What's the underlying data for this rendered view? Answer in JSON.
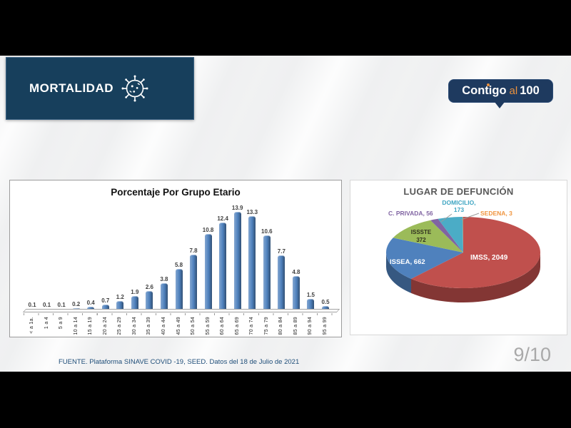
{
  "header": {
    "banner_title": "MORTALIDAD",
    "banner_icon": "virus-icon",
    "logo": {
      "part1": "Contigo",
      "part2": "al",
      "part3": "100"
    }
  },
  "footer": {
    "source": "FUENTE. Plataforma SINAVE COVID -19, SEED. Datos del 18 de Julio de 2021",
    "page": "9/10"
  },
  "colors": {
    "banner_bg": "#173F5C",
    "logo_bg": "#1E3A5F",
    "accent_orange": "#E9913E",
    "slide_bg": "#EFF0F1",
    "letterbox": "#000000"
  },
  "chart_data": [
    {
      "type": "bar",
      "title": "Porcentaje Por Grupo Etario",
      "categories": [
        "< a 1a.",
        "1 a 4",
        "5 a 9",
        "10 a 14",
        "15 a 19",
        "20 a 24",
        "25 a 29",
        "30 a 34",
        "35 a 39",
        "40 a 44",
        "45 a 49",
        "50 a 54",
        "55 a 59",
        "60 a 64",
        "65 a 69",
        "70 a 74",
        "75 a 79",
        "80 a 84",
        "85 a 89",
        "90 a 94",
        "95 a 99"
      ],
      "values": [
        0.1,
        0.1,
        0.1,
        0.2,
        0.4,
        0.7,
        1.2,
        1.9,
        2.6,
        3.8,
        5.8,
        7.8,
        10.8,
        12.4,
        13.9,
        13.3,
        10.6,
        7.7,
        4.8,
        1.5,
        0.5
      ],
      "bar_color": "#4F81BD",
      "xlabel": "",
      "ylabel": "",
      "ylim": [
        0,
        14
      ],
      "grid": false,
      "legend": "none",
      "data_labels": true
    },
    {
      "type": "pie",
      "title": "LUGAR DE DEFUNCIÓN",
      "style": "3d",
      "start_angle_deg": 0,
      "direction": "clockwise",
      "slices": [
        {
          "name": "IMSS",
          "value": 2049,
          "color": "#C0504D",
          "label": "IMSS, 2049"
        },
        {
          "name": "ISSEA",
          "value": 662,
          "color": "#4F81BD",
          "label": "ISSEA, 662"
        },
        {
          "name": "ISSSTE",
          "value": 372,
          "color": "#9BBB59",
          "label": "ISSSTE 372",
          "label_lines": [
            "ISSSTE",
            "372"
          ]
        },
        {
          "name": "C. PRIVADA",
          "value": 56,
          "color": "#8064A2",
          "label": "C. PRIVADA, 56"
        },
        {
          "name": "DOMICILIO",
          "value": 173,
          "color": "#4BACC6",
          "label": "DOMICILIO, 173",
          "label_lines": [
            "DOMICILIO,",
            "173"
          ]
        },
        {
          "name": "SEDENA",
          "value": 3,
          "color": "#F79646",
          "label": "SEDENA, 3"
        }
      ]
    }
  ]
}
